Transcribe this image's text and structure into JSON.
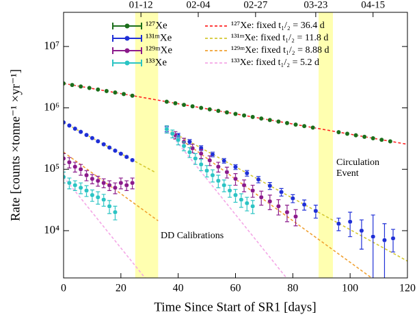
{
  "chart_data": {
    "type": "scatter",
    "xlabel": "Time Since Start of SR1 [days]",
    "ylabel": "Rate [counts ×tonne⁻¹ ×yr⁻¹]",
    "xlim": [
      0,
      120
    ],
    "xticks": [
      0,
      20,
      40,
      60,
      80,
      100,
      120
    ],
    "x2ticks": [
      {
        "value": 27,
        "label": "01-12"
      },
      {
        "value": 47,
        "label": "02-04"
      },
      {
        "value": 67,
        "label": "02-27"
      },
      {
        "value": 88,
        "label": "03-23"
      },
      {
        "value": 108,
        "label": "04-15"
      }
    ],
    "ylim": [
      1700,
      36000000
    ],
    "log_y": true,
    "yticks": [
      {
        "value": 10000,
        "label": "10⁴"
      },
      {
        "value": 100000,
        "label": "10⁵"
      },
      {
        "value": 1000000,
        "label": "10⁶"
      },
      {
        "value": 10000000,
        "label": "10⁷"
      }
    ],
    "bands": [
      {
        "x": [
          25,
          33
        ],
        "color": "#ffffb0"
      },
      {
        "x": [
          89,
          94
        ],
        "color": "#ffffb0"
      }
    ],
    "annotations": [
      [
        "DD Calibrations"
      ],
      [
        "Circulation",
        "Event"
      ]
    ],
    "series": [
      {
        "name": "¹²⁷Xe",
        "color": "#1b6e1b",
        "x": [
          0,
          3,
          6,
          9,
          12,
          15,
          18,
          21,
          24,
          36,
          39,
          42,
          45,
          48,
          51,
          54,
          57,
          60,
          63,
          66,
          69,
          72,
          75,
          78,
          81,
          84,
          87,
          96,
          99,
          102,
          105,
          108,
          111,
          114
        ],
        "values": [
          2500000,
          2360000,
          2230000,
          2110000,
          1990000,
          1880000,
          1780000,
          1680000,
          1580000,
          1260000,
          1190000,
          1120000,
          1060000,
          1000000,
          946000,
          894000,
          844000,
          797000,
          753000,
          711000,
          671000,
          634000,
          599000,
          566000,
          534000,
          505000,
          477000,
          402000,
          379000,
          358000,
          338000,
          320000,
          302000,
          285000
        ]
      },
      {
        "name": "¹³¹ᵐXe",
        "color": "#1f2fd6",
        "x": [
          0,
          2,
          4,
          6,
          8,
          10,
          12,
          14,
          16,
          18,
          20,
          22,
          24,
          36,
          40,
          44,
          48,
          52,
          56,
          60,
          64,
          68,
          72,
          76,
          80,
          84,
          88,
          96,
          100,
          104,
          108,
          112,
          115
        ],
        "values": [
          580000,
          516000,
          458000,
          407000,
          362000,
          322000,
          286000,
          255000,
          226000,
          201000,
          179000,
          159000,
          141000,
          450000,
          355000,
          281000,
          222000,
          175000,
          138000,
          109000,
          86300,
          68200,
          53900,
          42600,
          33600,
          26600,
          21000,
          13000,
          14000,
          10000,
          8000,
          7000,
          7500
        ],
        "errors": [
          12000,
          11000,
          10000,
          9000,
          8000,
          8000,
          7000,
          7000,
          6000,
          6000,
          5000,
          5000,
          5000,
          40000,
          30000,
          25000,
          20000,
          15000,
          12000,
          10000,
          9000,
          8000,
          7000,
          6000,
          5000,
          5000,
          5000,
          3000,
          6000,
          5000,
          10000,
          6000,
          3000
        ]
      },
      {
        "name": "¹²⁹ᵐXe",
        "color": "#8b1a8b",
        "x": [
          0,
          2,
          4,
          6,
          8,
          10,
          12,
          14,
          16,
          18,
          20,
          22,
          24,
          36,
          39,
          42,
          45,
          48,
          51,
          54,
          57,
          60,
          63,
          66,
          69,
          72,
          75,
          78,
          81
        ],
        "values": [
          150000,
          130000,
          110000,
          100000,
          80000,
          70000,
          65000,
          60000,
          55000,
          50000,
          60000,
          55000,
          60000,
          450000,
          360000,
          280000,
          220000,
          180000,
          140000,
          110000,
          90000,
          70000,
          55000,
          45000,
          35000,
          30000,
          25000,
          20000,
          17000
        ],
        "errors": [
          30000,
          25000,
          20000,
          20000,
          15000,
          12000,
          12000,
          10000,
          10000,
          10000,
          12000,
          10000,
          12000,
          60000,
          50000,
          40000,
          35000,
          30000,
          25000,
          20000,
          18000,
          15000,
          12000,
          10000,
          9000,
          8000,
          7000,
          6000,
          5000
        ]
      },
      {
        "name": "¹³³Xe",
        "color": "#2bc4c4",
        "x": [
          0,
          2,
          4,
          6,
          8,
          10,
          12,
          14,
          16,
          18,
          36,
          38,
          40,
          42,
          44,
          46,
          48,
          50,
          52,
          54,
          56,
          58,
          60,
          62,
          64,
          66
        ],
        "values": [
          75000,
          60000,
          55000,
          50000,
          45000,
          38000,
          35000,
          32000,
          25000,
          20000,
          450000,
          380000,
          300000,
          240000,
          190000,
          150000,
          120000,
          95000,
          80000,
          65000,
          55000,
          45000,
          38000,
          32000,
          28000,
          25000
        ],
        "errors": [
          15000,
          12000,
          10000,
          10000,
          9000,
          8000,
          8000,
          7000,
          6000,
          5000,
          60000,
          55000,
          50000,
          40000,
          35000,
          30000,
          25000,
          20000,
          18000,
          15000,
          12000,
          10000,
          9000,
          8000,
          7000,
          6000
        ]
      }
    ],
    "fits": [
      {
        "name": "¹²⁷Xe: fixed t₁/₂ = 36.4 d",
        "color": "#ff2020",
        "segments": [
          {
            "x": [
              0,
              120
            ],
            "values": [
              2500000,
              255000
            ]
          }
        ]
      },
      {
        "name": "¹³¹ᵐXe: fixed t₁/₂ = 11.8 d",
        "color": "#d4c830",
        "segments": [
          {
            "x": [
              0,
              32
            ],
            "values": [
              580000,
              89000
            ]
          },
          {
            "x": [
              36,
              120
            ],
            "values": [
              450000,
              3200
            ]
          }
        ]
      },
      {
        "name": "¹²⁹ᵐXe: fixed t₁/₂ = 8.88 d",
        "color": "#f0a030",
        "segments": [
          {
            "x": [
              0,
              33
            ],
            "values": [
              190000,
              14500
            ]
          },
          {
            "x": [
              36,
              110
            ],
            "values": [
              450000,
              1400
            ]
          }
        ]
      },
      {
        "name": "¹³³Xe: fixed t₁/₂ = 5.2 d",
        "color": "#f4a6e6",
        "segments": [
          {
            "x": [
              0,
              33
            ],
            "values": [
              75000,
              925
            ]
          },
          {
            "x": [
              36,
              82
            ],
            "values": [
              450000,
              970
            ]
          }
        ]
      }
    ]
  }
}
